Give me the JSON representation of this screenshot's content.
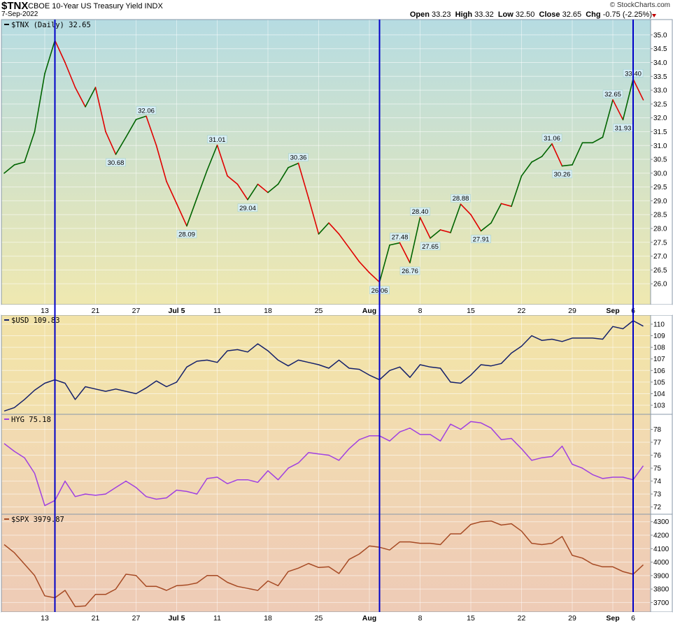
{
  "header": {
    "symbol": "$TNX",
    "name": "CBOE 10-Year US Treasury Yield",
    "exchange": "INDX",
    "date": "7-Sep-2022",
    "logo": "© StockCharts.com",
    "open_label": "Open",
    "open": "33.23",
    "high_label": "High",
    "high": "33.32",
    "low_label": "Low",
    "low": "32.50",
    "close_label": "Close",
    "close": "32.65",
    "chg_label": "Chg",
    "chg": "-0.75 (-2.25%)",
    "down_color": "#c00000"
  },
  "chart_data": [
    {
      "type": "line",
      "legend": "$TNX (Daily) 32.65",
      "ylim": [
        25.6,
        35.2
      ],
      "yticks": [
        "26.0",
        "26.5",
        "27.0",
        "27.5",
        "28.0",
        "28.5",
        "29.0",
        "29.5",
        "30.0",
        "30.5",
        "31.0",
        "31.5",
        "32.0",
        "32.5",
        "33.0",
        "33.5",
        "34.0",
        "34.5",
        "35.0"
      ],
      "up_color": "#006400",
      "down_color": "#e00000",
      "x": [
        0,
        1,
        2,
        3,
        4,
        5,
        6,
        7,
        8,
        9,
        10,
        11,
        12,
        13,
        14,
        15,
        16,
        17,
        18,
        19,
        20,
        21,
        22,
        23,
        24,
        25,
        26,
        27,
        28,
        29,
        30,
        31,
        32,
        33,
        34,
        35,
        36,
        37,
        38,
        39,
        40,
        41,
        42,
        43,
        44,
        45,
        46,
        47,
        48,
        49,
        50,
        51,
        52,
        53,
        54,
        55,
        56,
        57,
        58,
        59,
        60,
        61,
        62,
        63
      ],
      "values": [
        30.0,
        30.3,
        30.4,
        31.5,
        33.6,
        34.8,
        34.0,
        33.1,
        32.4,
        33.1,
        31.5,
        30.68,
        31.3,
        31.94,
        32.06,
        31.0,
        29.7,
        28.9,
        28.09,
        29.1,
        30.1,
        31.01,
        29.9,
        29.6,
        29.04,
        29.6,
        29.3,
        29.6,
        30.2,
        30.36,
        29.1,
        27.8,
        28.2,
        27.8,
        27.3,
        26.8,
        26.4,
        26.06,
        27.4,
        27.48,
        26.76,
        28.4,
        27.65,
        27.95,
        27.85,
        28.88,
        28.5,
        27.91,
        28.2,
        28.9,
        28.8,
        29.9,
        30.4,
        30.6,
        31.06,
        30.26,
        30.3,
        31.1,
        31.1,
        31.3,
        32.65,
        31.93,
        33.4,
        32.65
      ],
      "annotations": [
        {
          "i": 11,
          "text": "30.68",
          "pos": "below"
        },
        {
          "i": 14,
          "text": "32.06",
          "pos": "above"
        },
        {
          "i": 18,
          "text": "28.09",
          "pos": "below"
        },
        {
          "i": 21,
          "text": "31.01",
          "pos": "above"
        },
        {
          "i": 24,
          "text": "29.04",
          "pos": "below"
        },
        {
          "i": 29,
          "text": "30.36",
          "pos": "above"
        },
        {
          "i": 37,
          "text": "26.06",
          "pos": "below"
        },
        {
          "i": 39,
          "text": "27.48",
          "pos": "above"
        },
        {
          "i": 40,
          "text": "26.76",
          "pos": "below"
        },
        {
          "i": 41,
          "text": "28.40",
          "pos": "above"
        },
        {
          "i": 42,
          "text": "27.65",
          "pos": "below"
        },
        {
          "i": 45,
          "text": "28.88",
          "pos": "above"
        },
        {
          "i": 47,
          "text": "27.91",
          "pos": "below"
        },
        {
          "i": 54,
          "text": "31.06",
          "pos": "above"
        },
        {
          "i": 55,
          "text": "30.26",
          "pos": "below"
        },
        {
          "i": 60,
          "text": "32.65",
          "pos": "above"
        },
        {
          "i": 61,
          "text": "31.93",
          "pos": "below"
        },
        {
          "i": 62,
          "text": "33.40",
          "pos": "above"
        }
      ],
      "bg_top": "#b6dce2",
      "bg_bottom": "#efe8b0"
    },
    {
      "type": "line",
      "legend": "$USD 109.83",
      "line_color": "#14206a",
      "ylim": [
        102.4,
        110.6
      ],
      "yticks": [
        "103",
        "104",
        "105",
        "106",
        "107",
        "108",
        "109",
        "110"
      ],
      "values": [
        102.5,
        102.8,
        103.5,
        104.3,
        104.9,
        105.2,
        104.9,
        103.5,
        104.6,
        104.4,
        104.2,
        104.4,
        104.2,
        104.0,
        104.5,
        105.1,
        104.6,
        105.0,
        106.3,
        106.8,
        106.9,
        106.7,
        107.7,
        107.8,
        107.6,
        108.3,
        107.7,
        106.9,
        106.4,
        106.9,
        106.7,
        106.5,
        106.2,
        106.9,
        106.2,
        106.1,
        105.6,
        105.2,
        106.0,
        106.3,
        105.4,
        106.5,
        106.3,
        106.2,
        105.0,
        104.9,
        105.6,
        106.5,
        106.4,
        106.6,
        107.5,
        108.1,
        109.0,
        108.6,
        108.7,
        108.5,
        108.8,
        108.8,
        108.8,
        108.7,
        109.8,
        109.6,
        110.3,
        109.83
      ],
      "bg_top": "#f2e3a8",
      "bg_bottom": "#f2e0ad"
    },
    {
      "type": "line",
      "legend": "HYG 75.18",
      "line_color": "#a040e0",
      "ylim": [
        71.6,
        79.0
      ],
      "yticks": [
        "72",
        "73",
        "74",
        "75",
        "76",
        "77",
        "78"
      ],
      "values": [
        76.9,
        76.3,
        75.8,
        74.6,
        72.1,
        72.5,
        74.0,
        72.8,
        73.0,
        72.9,
        73.0,
        73.5,
        74.0,
        73.5,
        72.8,
        72.6,
        72.7,
        73.3,
        73.2,
        73.0,
        74.2,
        74.3,
        73.8,
        74.1,
        74.1,
        73.9,
        74.8,
        74.1,
        75.0,
        75.4,
        76.2,
        76.1,
        76.0,
        75.6,
        76.5,
        77.2,
        77.5,
        77.5,
        77.1,
        77.8,
        78.1,
        77.6,
        77.6,
        77.1,
        78.4,
        78.0,
        78.6,
        78.5,
        78.1,
        77.2,
        77.3,
        76.5,
        75.6,
        75.8,
        75.9,
        76.7,
        75.3,
        75.0,
        74.5,
        74.2,
        74.3,
        74.3,
        74.1,
        75.18
      ],
      "bg_top": "#f2dcb0",
      "bg_bottom": "#f0d4b4"
    },
    {
      "type": "line",
      "legend": "$SPX 3979.87",
      "line_color": "#a64a24",
      "ylim": [
        3645,
        4340
      ],
      "yticks": [
        "3700",
        "3800",
        "3900",
        "4000",
        "4100",
        "4200",
        "4300"
      ],
      "values": [
        4130,
        4070,
        3985,
        3900,
        3750,
        3735,
        3790,
        3670,
        3675,
        3760,
        3760,
        3800,
        3910,
        3900,
        3820,
        3820,
        3790,
        3825,
        3830,
        3845,
        3900,
        3900,
        3850,
        3820,
        3805,
        3790,
        3860,
        3825,
        3930,
        3955,
        3990,
        3960,
        3965,
        3915,
        4020,
        4060,
        4120,
        4110,
        4090,
        4150,
        4150,
        4140,
        4140,
        4130,
        4210,
        4210,
        4280,
        4300,
        4305,
        4275,
        4285,
        4230,
        4140,
        4130,
        4140,
        4190,
        4050,
        4030,
        3985,
        3965,
        3965,
        3930,
        3910,
        3979.87
      ],
      "bg_top": "#f0d1b4",
      "bg_bottom": "#eecbb6"
    }
  ],
  "xaxis": {
    "labels": [
      {
        "i": 4,
        "text": "13",
        "bold": false
      },
      {
        "i": 9,
        "text": "21",
        "bold": false
      },
      {
        "i": 13,
        "text": "27",
        "bold": false
      },
      {
        "i": 17,
        "text": "Jul 5",
        "bold": true
      },
      {
        "i": 21,
        "text": "11",
        "bold": false
      },
      {
        "i": 26,
        "text": "18",
        "bold": false
      },
      {
        "i": 31,
        "text": "25",
        "bold": false
      },
      {
        "i": 36,
        "text": "Aug",
        "bold": true
      },
      {
        "i": 41,
        "text": "8",
        "bold": false
      },
      {
        "i": 46,
        "text": "15",
        "bold": false
      },
      {
        "i": 51,
        "text": "22",
        "bold": false
      },
      {
        "i": 56,
        "text": "29",
        "bold": false
      },
      {
        "i": 60,
        "text": "Sep",
        "bold": true
      },
      {
        "i": 62,
        "text": "6",
        "bold": false
      }
    ],
    "markers": [
      5,
      37,
      62
    ],
    "marker_color": "#0000c8"
  }
}
